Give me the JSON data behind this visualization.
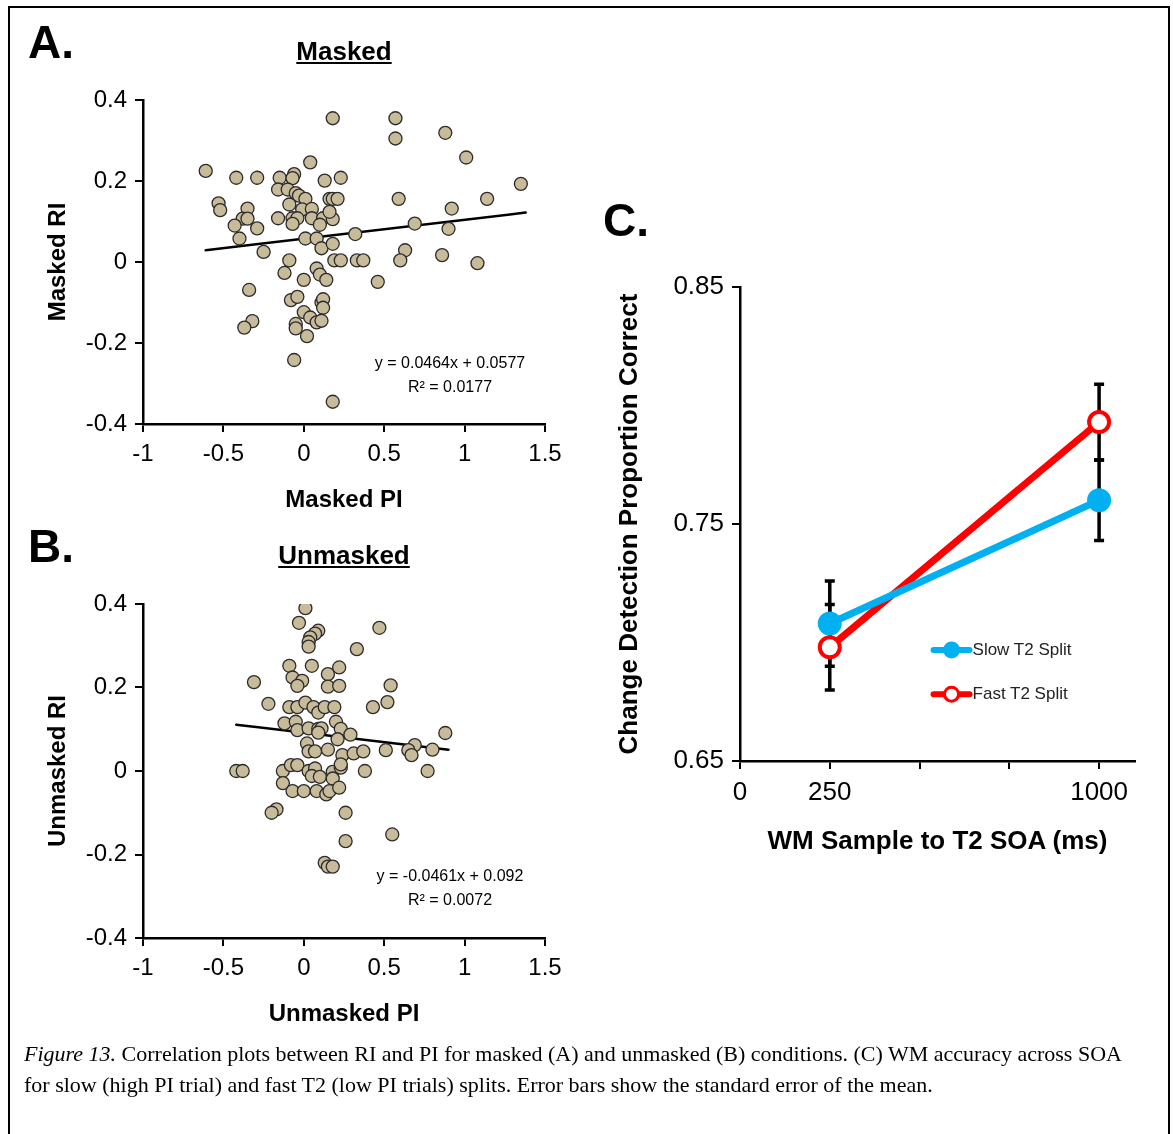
{
  "chart_data": [
    {
      "type": "scatter",
      "title": "Masked",
      "xlabel": "Masked PI",
      "ylabel": "Masked RI",
      "xlim": [
        -1,
        1.5
      ],
      "xticks": [
        -1,
        -0.5,
        0,
        0.5,
        1,
        1.5
      ],
      "ylim": [
        -0.4,
        0.4
      ],
      "yticks": [
        -0.4,
        -0.2,
        0,
        0.2,
        0.4
      ],
      "grid": false,
      "annotations": [
        "A.",
        "y = 0.0464x + 0.0577",
        "R² = 0.0177"
      ],
      "series": [
        {
          "type": "scatter",
          "marker": "circle",
          "color": "#c8bb9a",
          "x": [
            -0.61,
            -0.42,
            -0.29,
            -0.15,
            -0.06,
            -0.07,
            0.04,
            0.13,
            0.23,
            0.18,
            0.57,
            0.57,
            0.88,
            1.01,
            1.35,
            -0.53,
            -0.52,
            -0.35,
            -0.38,
            -0.35,
            -0.43,
            -0.4,
            -0.29,
            -0.16,
            -0.1,
            -0.05,
            -0.03,
            0.01,
            -0.09,
            -0.01,
            0.05,
            -0.07,
            -0.04,
            0.05,
            0.12,
            0.18,
            0.16,
            -0.07,
            0.1,
            0.16,
            0.18,
            0.21,
            -0.16,
            0.01,
            0.08,
            0.11,
            0.18,
            0.32,
            0.59,
            0.69,
            0.92,
            0.9,
            1.14,
            -0.25,
            -0.09,
            0.19,
            0.23,
            0.33,
            0.37,
            0.63,
            0.6,
            0.86,
            1.08,
            -0.12,
            0.08,
            0.1,
            0.14,
            0.0,
            0.46,
            -0.34,
            -0.08,
            -0.04,
            0.11,
            0.12,
            0.12,
            0.0,
            0.04,
            0.08,
            0.11,
            -0.05,
            -0.05,
            0.02,
            -0.32,
            -0.37,
            -0.06,
            0.18
          ],
          "values": [
            0.225,
            0.208,
            0.208,
            0.208,
            0.217,
            0.207,
            0.246,
            0.201,
            0.208,
            0.355,
            0.355,
            0.305,
            0.319,
            0.258,
            0.193,
            0.145,
            0.128,
            0.132,
            0.107,
            0.107,
            0.09,
            0.058,
            0.083,
            0.179,
            0.179,
            0.17,
            0.164,
            0.156,
            0.142,
            0.13,
            0.131,
            0.108,
            0.108,
            0.108,
            0.108,
            0.106,
            0.124,
            0.094,
            0.092,
            0.156,
            0.156,
            0.156,
            0.108,
            0.058,
            0.058,
            0.034,
            0.045,
            0.069,
            0.156,
            0.095,
            0.132,
            0.082,
            0.156,
            0.025,
            0.004,
            0.004,
            0.004,
            0.004,
            0.004,
            0.029,
            0.004,
            0.017,
            -0.003,
            -0.027,
            -0.016,
            -0.031,
            -0.044,
            -0.044,
            -0.049,
            -0.069,
            -0.094,
            -0.086,
            -0.1,
            -0.092,
            -0.113,
            -0.124,
            -0.137,
            -0.149,
            -0.145,
            -0.153,
            -0.164,
            -0.183,
            -0.146,
            -0.162,
            -0.242,
            -0.345
          ]
        },
        {
          "type": "line",
          "marker": "none",
          "color": "#000000",
          "x": [
            -0.61,
            1.38
          ],
          "values": [
            0.029,
            0.122
          ]
        }
      ]
    },
    {
      "type": "scatter",
      "title": "Unmasked",
      "xlabel": "Unmasked PI",
      "ylabel": "Unmasked RI",
      "xlim": [
        -1,
        1.5
      ],
      "xticks": [
        -1,
        -0.5,
        0,
        0.5,
        1,
        1.5
      ],
      "ylim": [
        -0.4,
        0.4
      ],
      "yticks": [
        -0.4,
        -0.2,
        0,
        0.2,
        0.4
      ],
      "grid": false,
      "annotations": [
        "B.",
        "y = -0.0461x + 0.092",
        "R² = 0.0072"
      ],
      "series": [
        {
          "type": "scatter",
          "marker": "circle",
          "color": "#c8bb9a",
          "x": [
            0.01,
            -0.03,
            0.09,
            0.07,
            0.04,
            0.03,
            0.03,
            0.47,
            0.33,
            -0.09,
            0.05,
            0.22,
            0.15,
            -0.07,
            -0.01,
            -0.04,
            -0.31,
            0.15,
            0.22,
            0.54,
            -0.22,
            -0.09,
            -0.04,
            0.01,
            0.06,
            0.09,
            0.13,
            0.19,
            0.43,
            0.52,
            -0.12,
            -0.05,
            -0.04,
            0.03,
            0.09,
            0.11,
            0.09,
            0.2,
            0.23,
            0.29,
            0.21,
            0.88,
            0.02,
            0.03,
            0.07,
            0.15,
            0.24,
            0.31,
            0.37,
            0.51,
            0.69,
            0.65,
            0.67,
            0.8,
            -0.42,
            -0.38,
            -0.13,
            -0.08,
            -0.04,
            0.03,
            0.07,
            0.05,
            0.1,
            0.18,
            0.23,
            0.23,
            0.18,
            0.38,
            0.77,
            -0.13,
            -0.07,
            0.0,
            0.08,
            0.14,
            0.16,
            0.22,
            -0.17,
            -0.2,
            0.26,
            0.26,
            0.55,
            0.13,
            0.15,
            0.18
          ],
          "values": [
            0.39,
            0.355,
            0.336,
            0.329,
            0.32,
            0.309,
            0.298,
            0.343,
            0.292,
            0.252,
            0.252,
            0.248,
            0.232,
            0.224,
            0.216,
            0.204,
            0.213,
            0.202,
            0.204,
            0.205,
            0.161,
            0.153,
            0.153,
            0.164,
            0.153,
            0.14,
            0.153,
            0.153,
            0.153,
            0.165,
            0.114,
            0.118,
            0.098,
            0.102,
            0.101,
            0.102,
            0.092,
            0.118,
            0.101,
            0.087,
            0.076,
            0.091,
            0.066,
            0.047,
            0.047,
            0.051,
            0.038,
            0.042,
            0.047,
            0.05,
            0.062,
            0.05,
            0.038,
            0.051,
            0.0,
            0.0,
            0.0,
            0.014,
            0.014,
            0.0,
            0.006,
            -0.012,
            -0.014,
            -0.002,
            0.008,
            0.016,
            -0.018,
            0.0,
            0.0,
            -0.029,
            -0.048,
            -0.048,
            -0.048,
            -0.056,
            -0.048,
            -0.04,
            -0.092,
            -0.1,
            -0.1,
            -0.168,
            -0.152,
            -0.22,
            -0.229,
            -0.229
          ]
        },
        {
          "type": "line",
          "marker": "none",
          "color": "#000000",
          "x": [
            -0.42,
            0.9
          ],
          "values": [
            0.111,
            0.051
          ]
        }
      ]
    },
    {
      "type": "line",
      "xlabel": "WM Sample to T2 SOA (ms)",
      "ylabel": "Change Detection Proportion Correct",
      "x": [
        250,
        1000
      ],
      "xlim": [
        0,
        1100
      ],
      "xticks": [
        0,
        250,
        {
          "value": 500,
          "label": null
        },
        {
          "value": 750,
          "label": null
        },
        1000
      ],
      "ylim": [
        0.65,
        0.85
      ],
      "yticks": [
        0.65,
        0.75,
        0.85
      ],
      "grid": false,
      "marker": "circle",
      "legend": "right",
      "line_style": "solid",
      "annotations": [
        "C.",
        "Figure 13.",
        "Correlation plots between RI and PI for masked (A) and unmasked (B) conditions. (C) WM accuracy across SOA for slow (high PI trial) and fast T2 (low PI trials) splits. Error bars show the standard error of the mean."
      ],
      "series": [
        {
          "name": "Slow T2 Split",
          "color": "#00b0f0",
          "values": [
            0.708,
            0.76
          ],
          "errors": [
            0.018,
            0.017
          ]
        },
        {
          "name": "Fast T2 Split",
          "color": "#ff0000",
          "values": [
            0.698,
            0.793
          ],
          "errors": [
            0.018,
            0.016
          ]
        }
      ]
    }
  ]
}
